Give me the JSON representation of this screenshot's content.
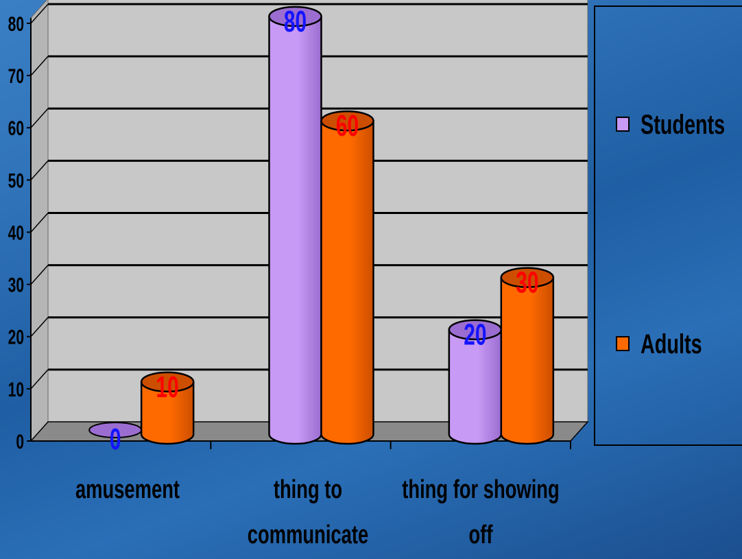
{
  "chart_data": {
    "type": "bar",
    "categories": [
      "amusement",
      "thing to communicate",
      "thing for showing off"
    ],
    "category_lines": [
      [
        "amusement"
      ],
      [
        "thing to",
        "communicate"
      ],
      [
        "thing for showing",
        "off"
      ]
    ],
    "series": [
      {
        "name": "Students",
        "values": [
          0,
          80,
          20
        ],
        "color": "#c79af5",
        "side_color": "#9b6dd0",
        "label_color": "#1414ff"
      },
      {
        "name": "Adults",
        "values": [
          10,
          60,
          30
        ],
        "color": "#ff6a00",
        "side_color": "#cc4e00",
        "label_color": "#ff0000"
      }
    ],
    "ylim": [
      0,
      80
    ],
    "yticks": [
      0,
      10,
      20,
      30,
      40,
      50,
      60,
      70,
      80
    ],
    "grid": true,
    "legend_position": "right",
    "wall_color": "#c8c8c8",
    "floor_color": "#8a8a8a"
  }
}
